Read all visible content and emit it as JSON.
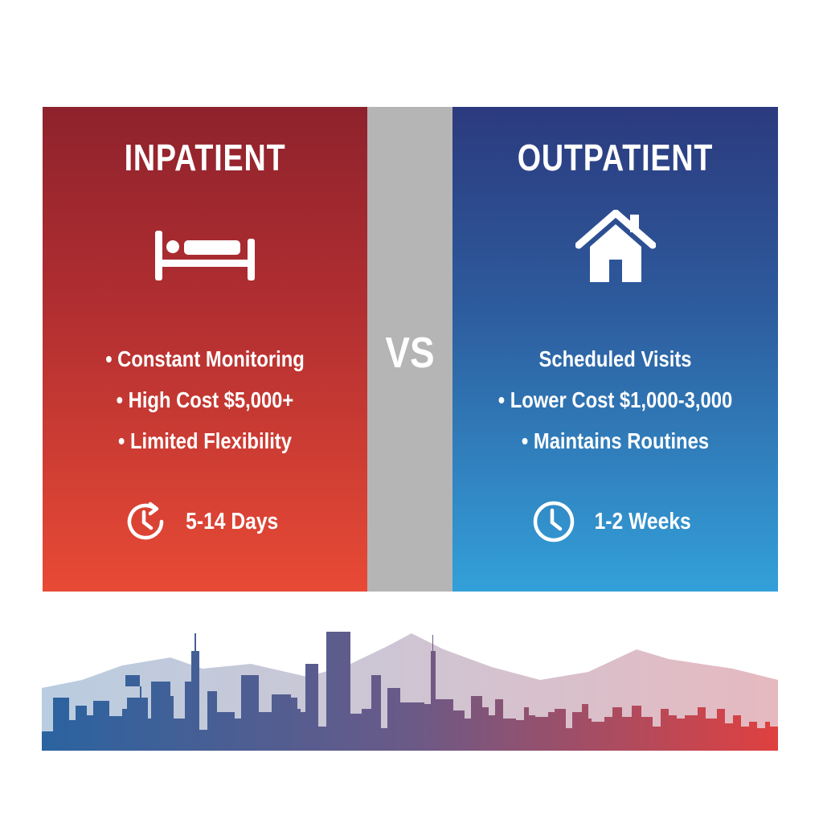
{
  "inpatient": {
    "title": "INPATIENT",
    "icon": "bed-icon",
    "items": [
      "• Constant Monitoring",
      "• High Cost $5,000+",
      "• Limited Flexibility"
    ],
    "duration": "5-14 Days",
    "duration_icon": "clock-refresh-icon",
    "color": "#c0342f"
  },
  "divider": {
    "label": "VS"
  },
  "outpatient": {
    "title": "OUTPATIENT",
    "icon": "house-icon",
    "items": [
      "Scheduled Visits",
      "• Lower Cost $1,000-3,000",
      "• Maintains Routines"
    ],
    "duration": "1-2 Weeks",
    "duration_icon": "clock-icon",
    "color": "#2d5a9c"
  },
  "footer": {
    "graphic": "city-skyline"
  }
}
